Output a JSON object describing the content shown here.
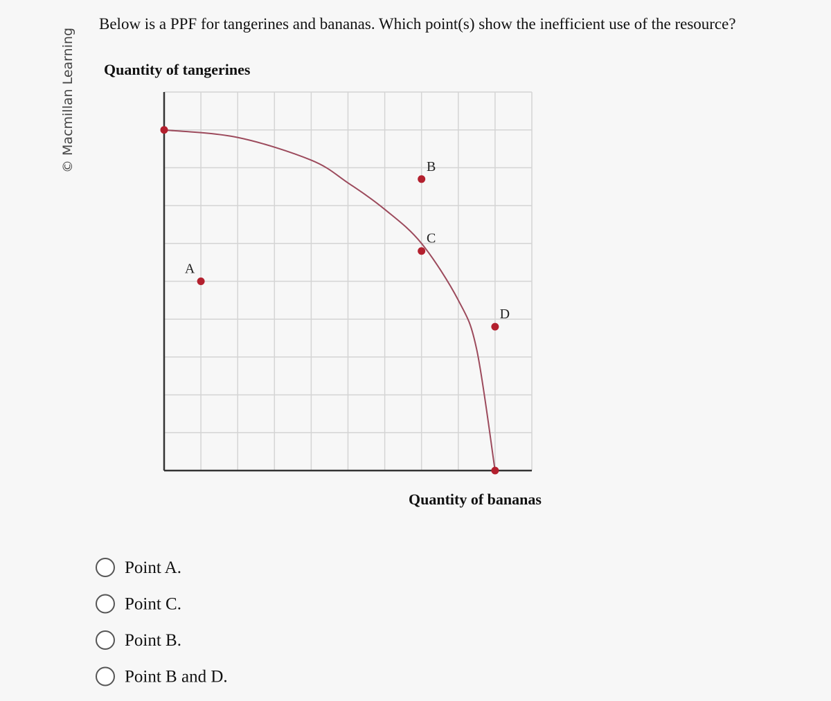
{
  "sidebar": {
    "credit": "© Macmillan Learning"
  },
  "question": {
    "text": "Below is a PPF for tangerines and bananas. Which point(s) show the inefficient use of the resource?"
  },
  "chart_data": {
    "type": "ppf",
    "ylabel": "Quantity of tangerines",
    "xlabel": "Quantity of bananas",
    "xlim": [
      0,
      10
    ],
    "ylim": [
      0,
      10
    ],
    "xticks": [
      0,
      1,
      2,
      3,
      4,
      5,
      6,
      7,
      8,
      9,
      10
    ],
    "yticks": [
      0,
      1,
      2,
      3,
      4,
      5,
      6,
      7,
      8,
      9,
      10
    ],
    "grid": true,
    "tick_labels": false,
    "curve": {
      "color": "#9c4a5c",
      "x": [
        0,
        2,
        4,
        5,
        6,
        7,
        8,
        8.5,
        9
      ],
      "y": [
        9,
        8.8,
        8.2,
        7.6,
        6.9,
        6,
        4.5,
        3.2,
        0
      ]
    },
    "points": {
      "color": "#b3202e",
      "labels": [
        "A",
        "B",
        "C",
        "D"
      ],
      "x": [
        1,
        7,
        7,
        9
      ],
      "y": [
        5,
        7.7,
        5.8,
        3.8
      ]
    }
  },
  "options": [
    "Point A.",
    "Point C.",
    "Point B.",
    "Point B and D."
  ]
}
